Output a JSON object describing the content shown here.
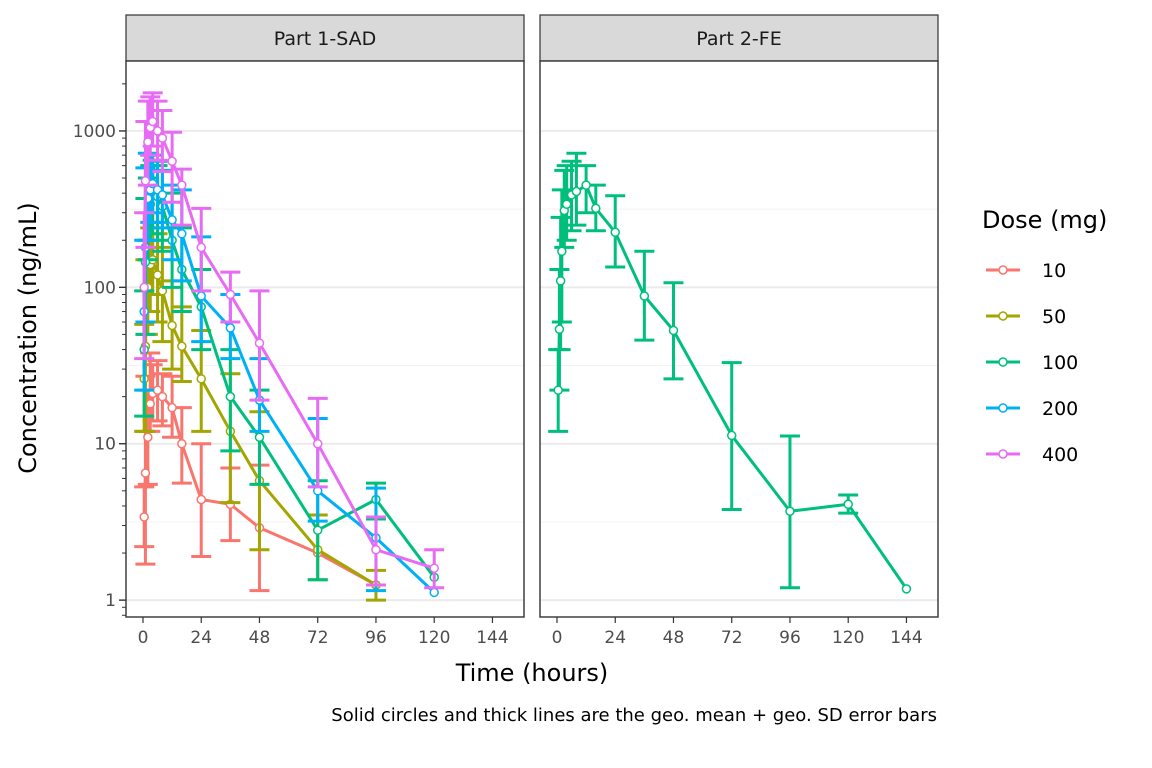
{
  "chart_data": {
    "type": "line",
    "facets": [
      "Part 1-SAD",
      "Part 2-FE"
    ],
    "xlabel": "Time (hours)",
    "ylabel": "Concentration (ng/mL)",
    "caption": "Solid circles and thick lines are the geo. mean + geo. SD error bars",
    "x_ticks": [
      0,
      24,
      48,
      72,
      96,
      120,
      144
    ],
    "y_ticks": [
      1,
      10,
      100,
      1000
    ],
    "y_scale": "log10",
    "xlim": [
      -7,
      157
    ],
    "ylim": [
      0.78,
      2800
    ],
    "grid": "horizontal major and minor",
    "legend": {
      "title": "Dose (mg)",
      "position": "right",
      "entries": [
        "10",
        "50",
        "100",
        "200",
        "400"
      ]
    },
    "series": [
      {
        "name": "10",
        "facet": "Part 1-SAD",
        "color": "#F8766D",
        "x": [
          0.5,
          1,
          2,
          3,
          4,
          6,
          8,
          12,
          16,
          24,
          36,
          48,
          72,
          96
        ],
        "y": [
          3.4,
          6.5,
          11,
          18,
          21,
          22,
          20,
          17,
          10,
          4.4,
          4.1,
          2.9,
          2.0,
          1.25
        ],
        "lo": [
          2.2,
          1.7,
          5.5,
          12,
          14,
          14,
          13,
          11,
          5.6,
          1.9,
          2.4,
          1.15,
          null,
          null
        ],
        "hi": [
          5.3,
          27,
          22,
          38,
          32,
          34,
          28,
          27,
          17,
          10,
          7,
          7.3,
          null,
          null
        ]
      },
      {
        "name": "50",
        "facet": "Part 1-SAD",
        "color": "#A3A500",
        "x": [
          0.5,
          1,
          2,
          3,
          4,
          6,
          8,
          12,
          16,
          24,
          36,
          48,
          72,
          96
        ],
        "y": [
          26,
          42,
          100,
          140,
          150,
          120,
          95,
          57,
          42,
          26,
          12,
          5.8,
          2.1,
          1.25
        ],
        "lo": [
          12,
          12,
          50,
          70,
          90,
          60,
          45,
          30,
          25,
          12,
          4.2,
          2.1,
          1.35,
          1.0
        ],
        "hi": [
          58,
          150,
          200,
          240,
          260,
          220,
          180,
          110,
          75,
          53,
          28,
          16,
          3.5,
          1.55
        ]
      },
      {
        "name": "100",
        "facet": "Part 1-SAD",
        "color": "#00BF7D",
        "x": [
          0.5,
          1,
          2,
          3,
          4,
          6,
          8,
          12,
          16,
          24,
          36,
          48,
          72,
          96,
          120
        ],
        "y": [
          40,
          145,
          280,
          340,
          400,
          380,
          330,
          200,
          130,
          75,
          20,
          11,
          2.8,
          4.4,
          1.4
        ],
        "lo": [
          15,
          50,
          150,
          200,
          220,
          200,
          170,
          100,
          70,
          40,
          9,
          5.5,
          1.35,
          3.3,
          null
        ],
        "hi": [
          95,
          370,
          500,
          600,
          650,
          600,
          550,
          400,
          240,
          130,
          40,
          22,
          5.8,
          5.6,
          null
        ]
      },
      {
        "name": "200",
        "facet": "Part 1-SAD",
        "color": "#00B0F6",
        "x": [
          0.5,
          1,
          2,
          3,
          4,
          6,
          8,
          12,
          16,
          24,
          36,
          48,
          72,
          96,
          120
        ],
        "y": [
          70,
          180,
          370,
          420,
          460,
          420,
          390,
          270,
          220,
          88,
          55,
          19,
          5.0,
          2.5,
          1.12
        ],
        "lo": [
          22,
          60,
          200,
          260,
          300,
          260,
          240,
          150,
          110,
          45,
          35,
          12,
          3.2,
          1.15,
          null
        ],
        "hi": [
          200,
          580,
          720,
          700,
          700,
          640,
          560,
          450,
          420,
          210,
          90,
          35,
          14.5,
          5.2,
          null
        ]
      },
      {
        "name": "400",
        "facet": "Part 1-SAD",
        "color": "#E76BF3",
        "x": [
          0.5,
          1,
          2,
          3,
          4,
          6,
          8,
          12,
          16,
          24,
          36,
          48,
          72,
          96,
          120
        ],
        "y": [
          100,
          480,
          850,
          1050,
          1150,
          1000,
          900,
          640,
          450,
          180,
          90,
          44,
          10,
          2.1,
          1.6
        ],
        "lo": [
          35,
          180,
          450,
          700,
          800,
          650,
          550,
          350,
          250,
          95,
          60,
          19,
          5.3,
          1.25,
          1.2
        ],
        "hi": [
          300,
          1150,
          1550,
          1650,
          1750,
          1550,
          1350,
          980,
          570,
          320,
          125,
          95,
          19.5,
          3.4,
          2.1
        ]
      },
      {
        "name": "100",
        "facet": "Part 2-FE",
        "color": "#00BF7D",
        "x": [
          0.5,
          1,
          1.5,
          2,
          3,
          4,
          6,
          8,
          12,
          16,
          24,
          36,
          48,
          72,
          96,
          120,
          144
        ],
        "y": [
          22,
          54,
          110,
          170,
          310,
          340,
          390,
          410,
          450,
          320,
          225,
          88,
          53,
          11.3,
          3.7,
          4.1,
          1.18
        ],
        "lo": [
          12,
          22,
          40,
          60,
          180,
          200,
          230,
          250,
          300,
          230,
          135,
          46,
          26,
          3.8,
          1.2,
          3.6,
          null
        ],
        "hi": [
          40,
          130,
          280,
          420,
          560,
          600,
          640,
          720,
          600,
          450,
          385,
          170,
          107,
          33,
          11.2,
          4.7,
          null
        ]
      }
    ]
  }
}
